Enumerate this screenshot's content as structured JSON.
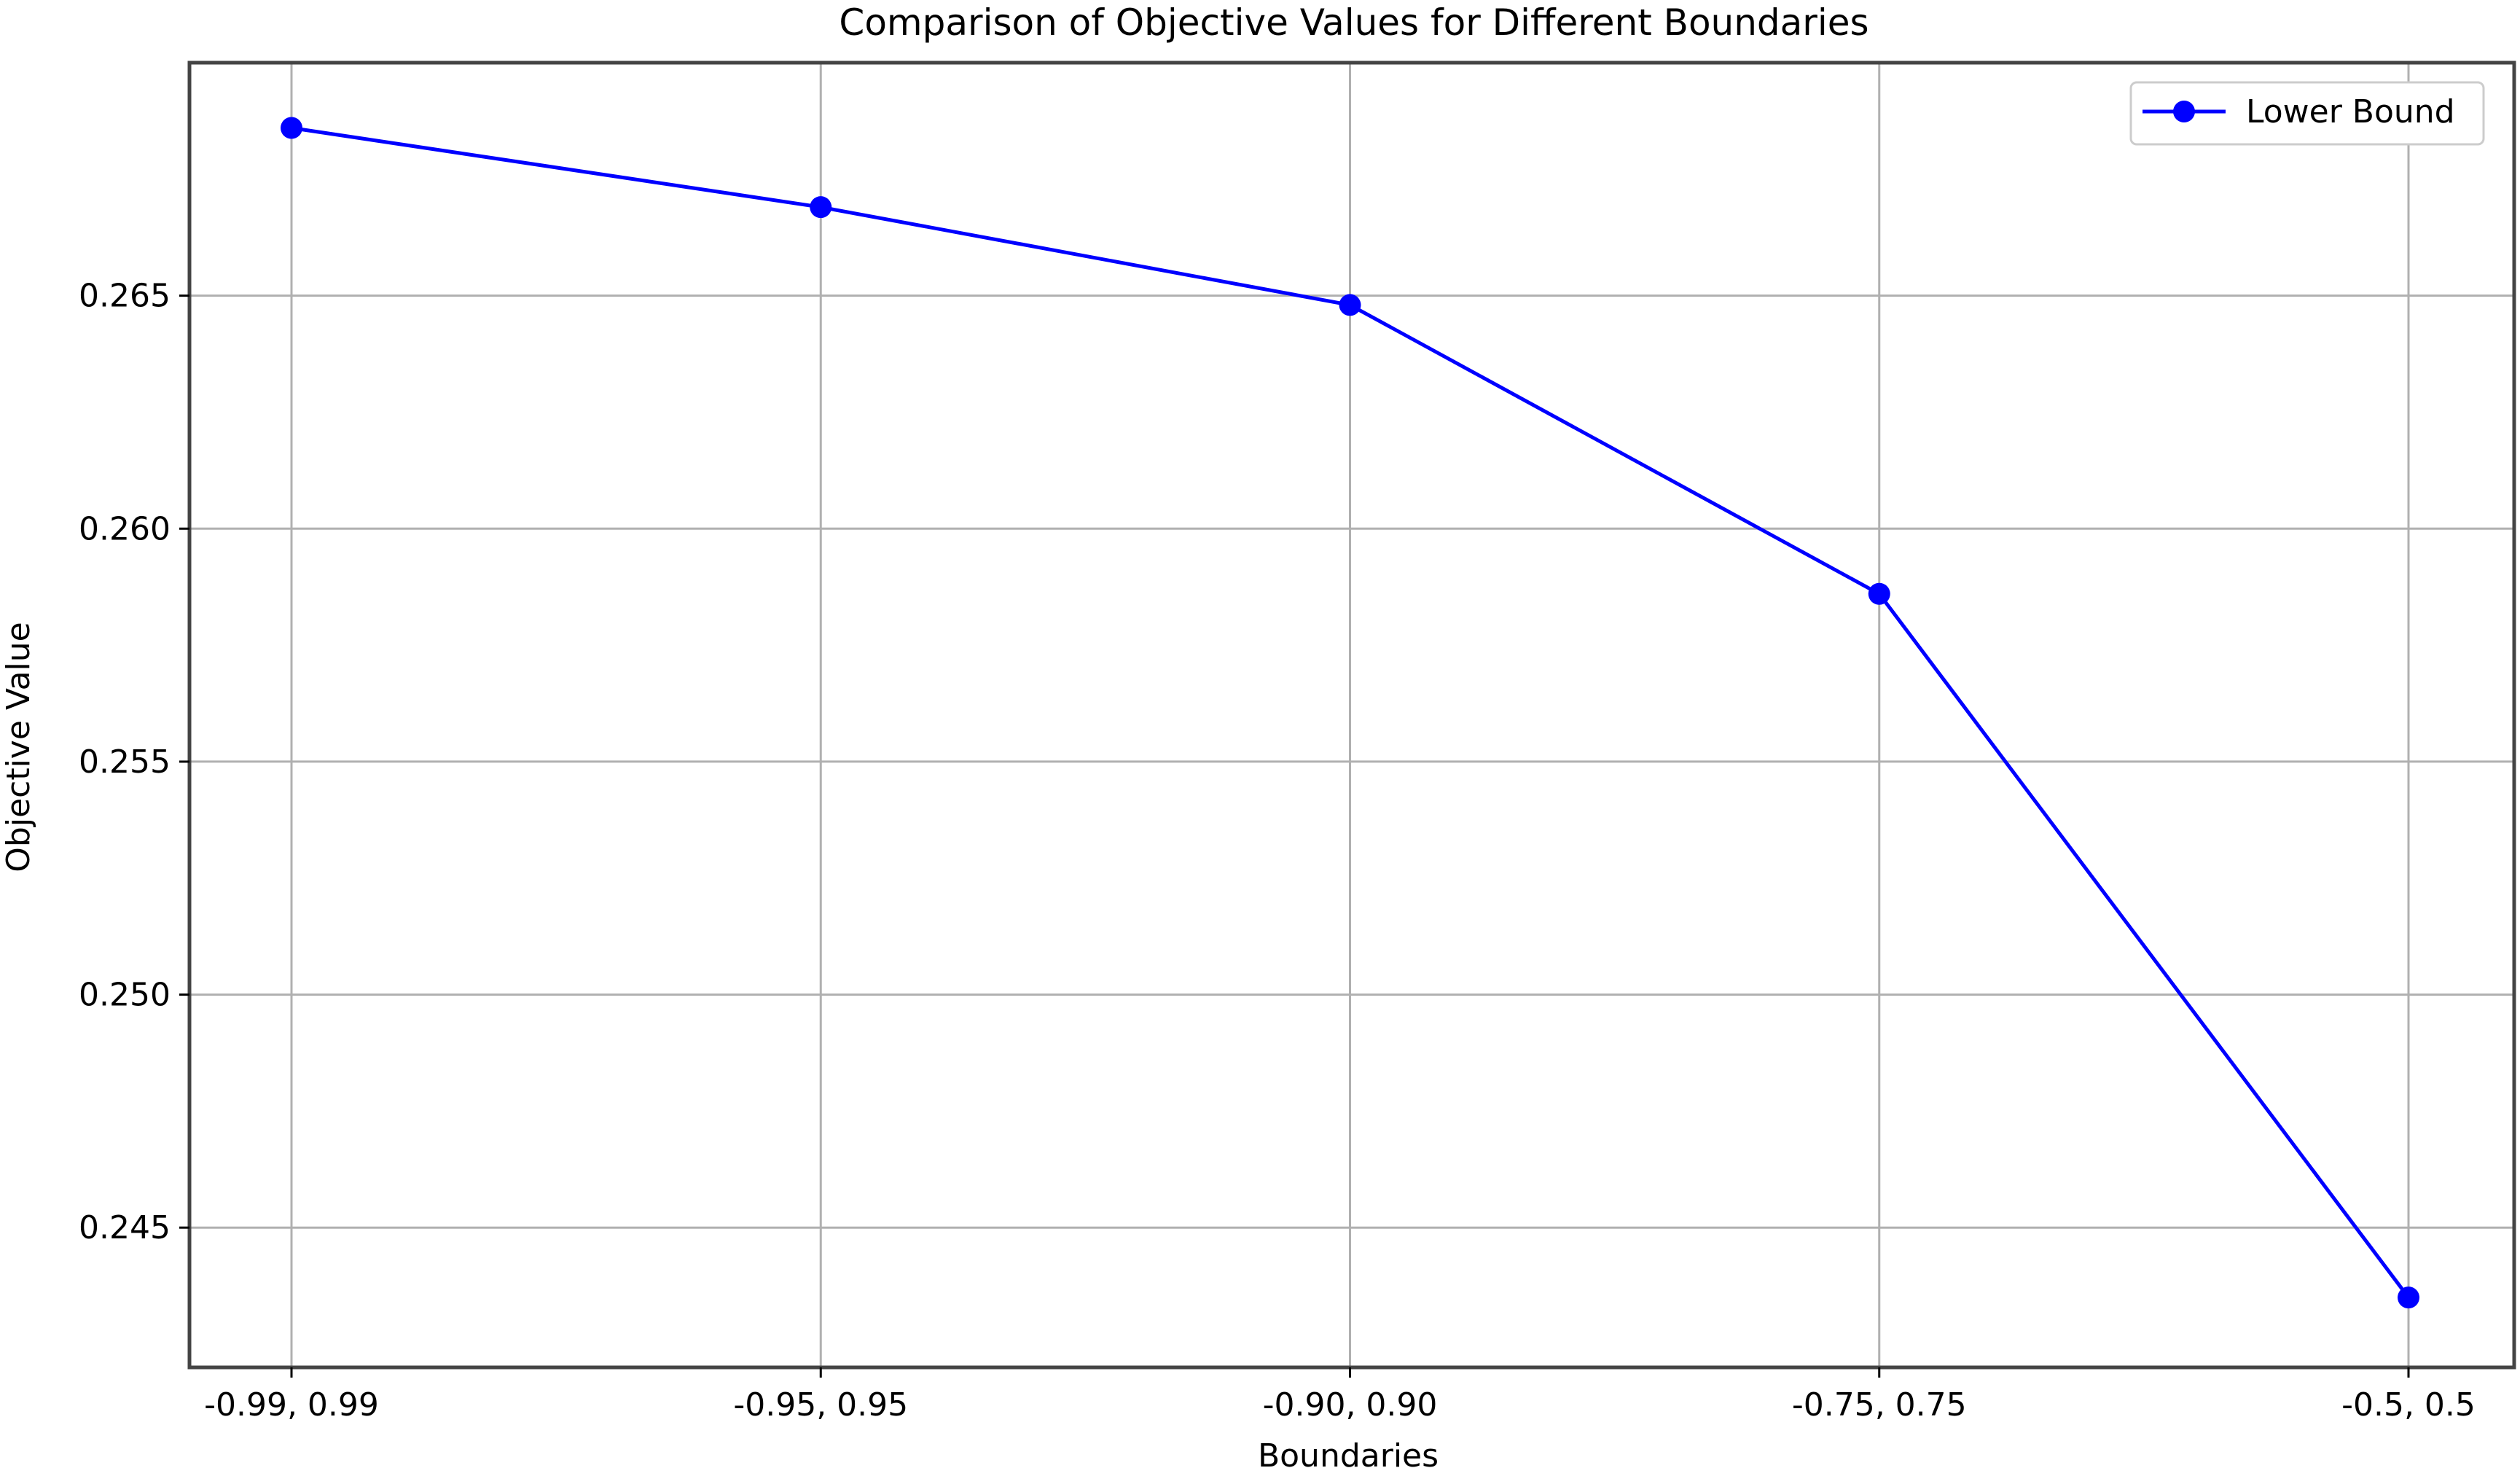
{
  "chart_data": {
    "type": "line",
    "title": "Comparison of Objective Values for Different Boundaries",
    "xlabel": "Boundaries",
    "ylabel": "Objective Value",
    "categories": [
      "-0.99, 0.99",
      "-0.95, 0.95",
      "-0.90, 0.90",
      "-0.75, 0.75",
      "-0.5, 0.5"
    ],
    "series": [
      {
        "name": "Lower Bound",
        "values": [
          0.2686,
          0.2669,
          0.2648,
          0.2586,
          0.2435
        ],
        "color": "#0000ff",
        "marker": "circle"
      }
    ],
    "ylim": [
      0.242,
      0.27
    ],
    "yticks": [
      0.245,
      0.25,
      0.255,
      0.26,
      0.265
    ],
    "ytick_labels": [
      "0.245",
      "0.250",
      "0.255",
      "0.260",
      "0.265"
    ],
    "grid": true,
    "legend_position": "top-right"
  }
}
